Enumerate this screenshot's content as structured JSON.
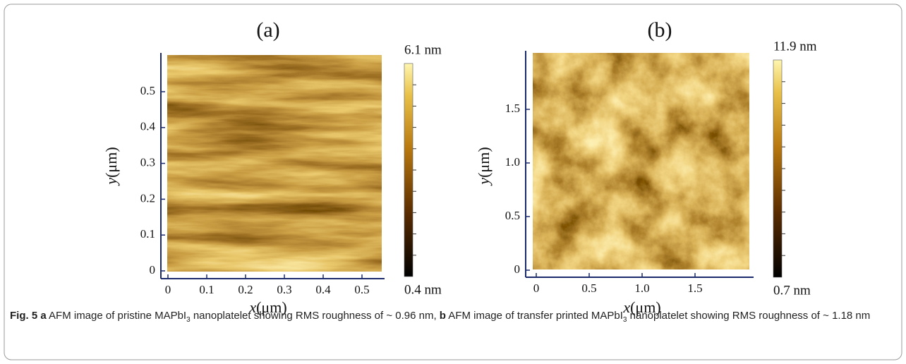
{
  "figure": {
    "panels": [
      {
        "label": "(a)",
        "xlabel": {
          "var": "x",
          "unit": "(μm)"
        },
        "ylabel": {
          "var": "y",
          "unit": "(μm)"
        },
        "xticks": [
          0,
          0.1,
          0.2,
          0.3,
          0.4,
          0.5
        ],
        "yticks": [
          0,
          0.1,
          0.2,
          0.3,
          0.4,
          0.5
        ],
        "colorbar": {
          "max": "6.1 nm",
          "min": "0.4 nm"
        }
      },
      {
        "label": "(b)",
        "xlabel": {
          "var": "x",
          "unit": "(μm)"
        },
        "ylabel": {
          "var": "y",
          "unit": "(μm)"
        },
        "xticks": [
          0,
          0.5,
          {
            "value": 1,
            "label": "1.0"
          },
          1.5
        ],
        "yticks": [
          0,
          0.5,
          {
            "value": 1,
            "label": "1.0"
          },
          1.5
        ],
        "colorbar": {
          "max": "11.9 nm",
          "min": "0.7 nm"
        }
      }
    ],
    "caption": {
      "label": "Fig. 5",
      "segments": [
        {
          "text": "a",
          "style": "bold"
        },
        {
          "text": " AFM image of pristine MAPbI"
        },
        {
          "text": "3",
          "style": "sub"
        },
        {
          "text": " nanoplatelet showing RMS roughness of ~ 0.96 nm, "
        },
        {
          "text": "b",
          "style": "bold"
        },
        {
          "text": " AFM image of transfer printed MAPbI"
        },
        {
          "text": "3",
          "style": "sub"
        },
        {
          "text": " nanoplatelet showing RMS roughness of ~ 1.18 nm"
        }
      ]
    }
  }
}
